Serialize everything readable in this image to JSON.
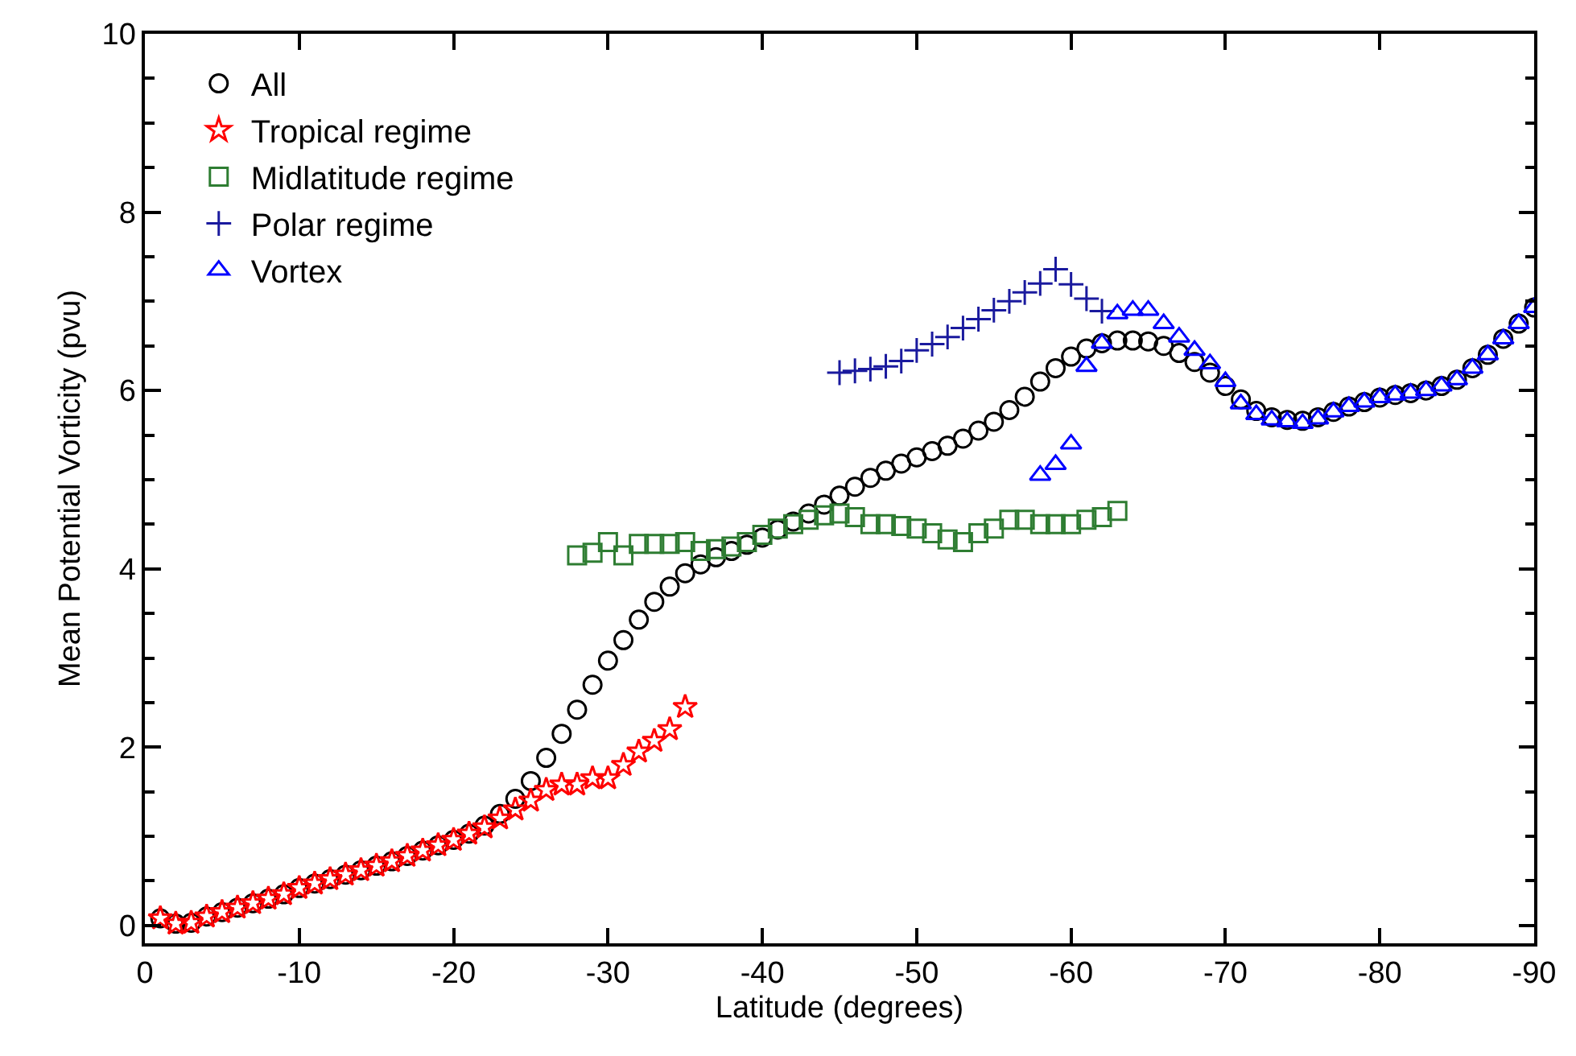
{
  "chart_data": {
    "type": "scatter",
    "xlabel": "Latitude (degrees)",
    "ylabel": "Mean Potential Vorticity (pvu)",
    "xlim": [
      0,
      -90
    ],
    "xticks": [
      0,
      -10,
      -20,
      -30,
      -40,
      -50,
      -60,
      -70,
      -80,
      -90
    ],
    "ylim": [
      -0.2,
      10
    ],
    "yticks": [
      0,
      2,
      4,
      6,
      8,
      10
    ],
    "grid": false,
    "legend": "top left",
    "series": [
      {
        "name": "All",
        "color": "#000000",
        "marker": "circle",
        "x": [
          -1,
          -2,
          -3,
          -4,
          -5,
          -6,
          -7,
          -8,
          -9,
          -10,
          -11,
          -12,
          -13,
          -14,
          -15,
          -16,
          -17,
          -18,
          -19,
          -20,
          -21,
          -22,
          -23,
          -24,
          -25,
          -26,
          -27,
          -28,
          -29,
          -30,
          -31,
          -32,
          -33,
          -34,
          -35,
          -36,
          -37,
          -38,
          -39,
          -40,
          -41,
          -42,
          -43,
          -44,
          -45,
          -46,
          -47,
          -48,
          -49,
          -50,
          -51,
          -52,
          -53,
          -54,
          -55,
          -56,
          -57,
          -58,
          -59,
          -60,
          -61,
          -62,
          -63,
          -64,
          -65,
          -66,
          -67,
          -68,
          -69,
          -70,
          -71,
          -72,
          -73,
          -74,
          -75,
          -76,
          -77,
          -78,
          -79,
          -80,
          -81,
          -82,
          -83,
          -84,
          -85,
          -86,
          -87,
          -88,
          -89,
          -90
        ],
        "values": [
          0.08,
          0.02,
          0.03,
          0.1,
          0.15,
          0.2,
          0.25,
          0.3,
          0.35,
          0.42,
          0.47,
          0.52,
          0.57,
          0.62,
          0.67,
          0.72,
          0.78,
          0.84,
          0.9,
          0.96,
          1.03,
          1.12,
          1.25,
          1.42,
          1.62,
          1.88,
          2.15,
          2.42,
          2.7,
          2.97,
          3.2,
          3.43,
          3.63,
          3.8,
          3.95,
          4.05,
          4.13,
          4.2,
          4.27,
          4.35,
          4.44,
          4.53,
          4.62,
          4.72,
          4.82,
          4.92,
          5.02,
          5.1,
          5.18,
          5.25,
          5.32,
          5.38,
          5.46,
          5.55,
          5.65,
          5.78,
          5.93,
          6.1,
          6.25,
          6.38,
          6.47,
          6.53,
          6.56,
          6.56,
          6.55,
          6.5,
          6.42,
          6.32,
          6.2,
          6.05,
          5.9,
          5.77,
          5.7,
          5.67,
          5.66,
          5.7,
          5.76,
          5.82,
          5.87,
          5.92,
          5.95,
          5.97,
          6.0,
          6.05,
          6.12,
          6.25,
          6.4,
          6.58,
          6.75,
          6.93
        ]
      },
      {
        "name": "Tropical regime",
        "color": "#ff0000",
        "marker": "star",
        "x": [
          -1,
          -2,
          -3,
          -4,
          -5,
          -6,
          -7,
          -8,
          -9,
          -10,
          -11,
          -12,
          -13,
          -14,
          -15,
          -16,
          -17,
          -18,
          -19,
          -20,
          -21,
          -22,
          -23,
          -24,
          -25,
          -26,
          -27,
          -28,
          -29,
          -30,
          -31,
          -32,
          -33,
          -34,
          -35
        ],
        "values": [
          0.08,
          0.02,
          0.03,
          0.1,
          0.15,
          0.2,
          0.25,
          0.3,
          0.35,
          0.42,
          0.47,
          0.52,
          0.57,
          0.62,
          0.67,
          0.72,
          0.78,
          0.84,
          0.9,
          0.96,
          1.03,
          1.1,
          1.2,
          1.3,
          1.4,
          1.52,
          1.58,
          1.58,
          1.65,
          1.65,
          1.8,
          1.95,
          2.07,
          2.2,
          2.45
        ]
      },
      {
        "name": "Midlatitude regime",
        "color": "#2e7d32",
        "marker": "square",
        "x": [
          -28,
          -29,
          -30,
          -31,
          -32,
          -33,
          -34,
          -35,
          -36,
          -37,
          -38,
          -39,
          -40,
          -41,
          -42,
          -43,
          -44,
          -45,
          -46,
          -47,
          -48,
          -49,
          -50,
          -51,
          -52,
          -53,
          -54,
          -55,
          -56,
          -57,
          -58,
          -59,
          -60,
          -61,
          -62,
          -63
        ],
        "values": [
          4.15,
          4.18,
          4.3,
          4.15,
          4.28,
          4.28,
          4.28,
          4.3,
          4.2,
          4.22,
          4.25,
          4.3,
          4.38,
          4.45,
          4.5,
          4.55,
          4.6,
          4.62,
          4.58,
          4.5,
          4.5,
          4.48,
          4.45,
          4.4,
          4.33,
          4.3,
          4.4,
          4.45,
          4.55,
          4.55,
          4.5,
          4.5,
          4.5,
          4.55,
          4.58,
          4.65
        ]
      },
      {
        "name": "Polar regime",
        "color": "#1a1a9e",
        "marker": "cross",
        "x": [
          -45,
          -46,
          -47,
          -48,
          -49,
          -50,
          -51,
          -52,
          -53,
          -54,
          -55,
          -56,
          -57,
          -58,
          -59,
          -60,
          -61,
          -62
        ],
        "values": [
          6.2,
          6.22,
          6.24,
          6.27,
          6.33,
          6.45,
          6.52,
          6.6,
          6.7,
          6.8,
          6.9,
          7.0,
          7.1,
          7.2,
          7.36,
          7.19,
          7.03,
          6.89
        ]
      },
      {
        "name": "Vortex",
        "color": "#0000ff",
        "marker": "triangle",
        "x": [
          -58,
          -59,
          -60,
          -61,
          -62,
          -63,
          -64,
          -65,
          -66,
          -67,
          -68,
          -69,
          -70,
          -71,
          -72,
          -73,
          -74,
          -75,
          -76,
          -77,
          -78,
          -79,
          -80,
          -81,
          -82,
          -83,
          -84,
          -85,
          -86,
          -87,
          -88,
          -89,
          -90
        ],
        "values": [
          5.05,
          5.17,
          5.4,
          6.27,
          6.53,
          6.86,
          6.9,
          6.9,
          6.75,
          6.6,
          6.45,
          6.3,
          6.1,
          5.85,
          5.73,
          5.67,
          5.65,
          5.63,
          5.68,
          5.76,
          5.82,
          5.87,
          5.92,
          5.95,
          5.97,
          6.0,
          6.05,
          6.12,
          6.25,
          6.4,
          6.58,
          6.75,
          6.93
        ]
      }
    ]
  }
}
